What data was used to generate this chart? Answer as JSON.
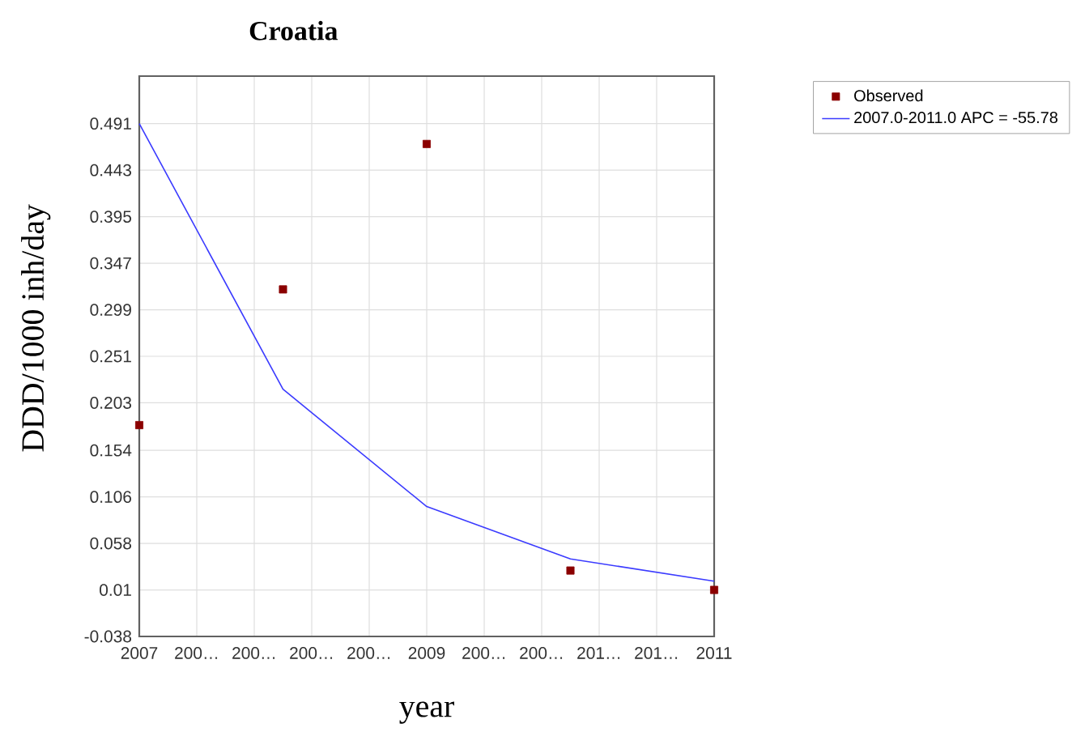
{
  "chart_data": {
    "type": "line",
    "title": "Croatia",
    "xlabel": "year",
    "ylabel": "DDD/1000 inh/day",
    "series": [
      {
        "name": "Observed",
        "type": "scatter",
        "color": "#8b0000",
        "marker": "square",
        "x": [
          2007,
          2008,
          2009,
          2010,
          2011
        ],
        "values": [
          0.18,
          0.32,
          0.47,
          0.03,
          0.01
        ]
      },
      {
        "name": "2007.0-2011.0 APC = -55.78",
        "color": "#3b3bff",
        "marker": "none",
        "line_style": "solid",
        "x": [
          2007,
          2008,
          2009,
          2010,
          2011
        ],
        "values": [
          0.491,
          0.217,
          0.096,
          0.042,
          0.019
        ]
      }
    ],
    "xlim": [
      2007,
      2011
    ],
    "xticks": [
      2007,
      {
        "value": 2007.4,
        "label": "200…"
      },
      {
        "value": 2007.8,
        "label": "200…"
      },
      {
        "value": 2008.2,
        "label": "200…"
      },
      {
        "value": 2008.6,
        "label": "200…"
      },
      2009,
      {
        "value": 2009.4,
        "label": "200…"
      },
      {
        "value": 2009.8,
        "label": "200…"
      },
      {
        "value": 2010.2,
        "label": "201…"
      },
      {
        "value": 2010.6,
        "label": "201…"
      },
      2011
    ],
    "ylim": [
      -0.038,
      0.54
    ],
    "yticks": [
      -0.038,
      0.01,
      0.058,
      0.106,
      0.154,
      0.203,
      0.251,
      0.299,
      0.347,
      0.395,
      0.443,
      0.491
    ],
    "grid": true,
    "legend": "top right"
  }
}
